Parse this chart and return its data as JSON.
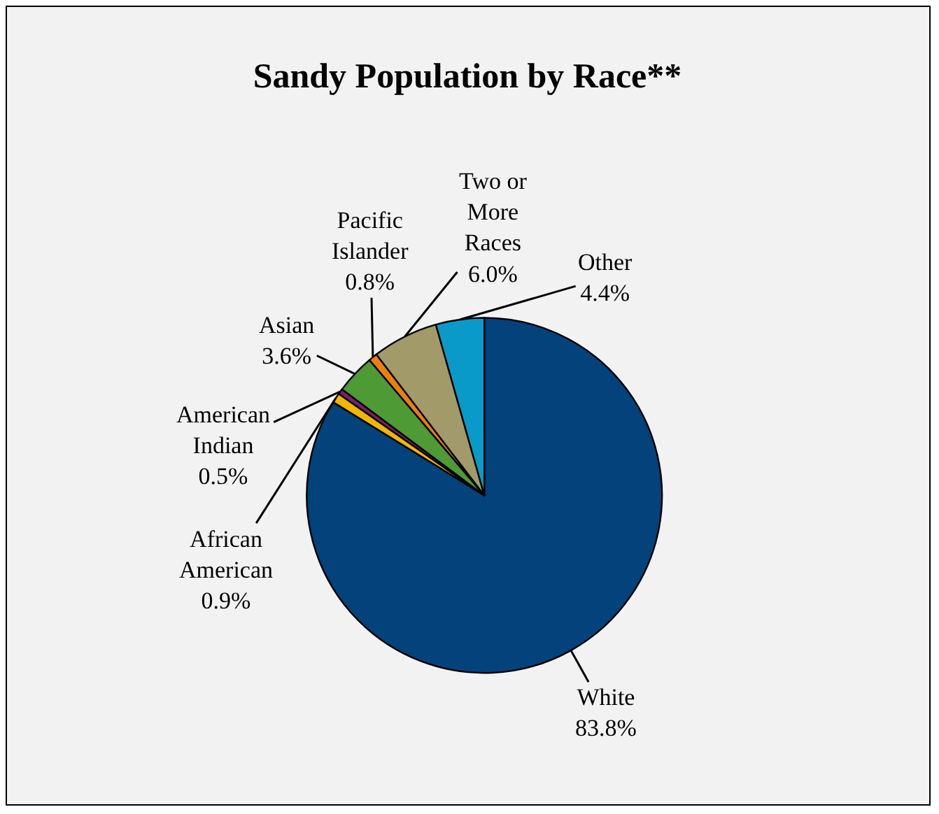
{
  "chart_data": {
    "type": "pie",
    "title": "Sandy Population by Race**",
    "categories": [
      "White",
      "African American",
      "American Indian",
      "Asian",
      "Pacific Islander",
      "Two or More Races",
      "Other"
    ],
    "values": [
      83.8,
      0.9,
      0.5,
      3.6,
      0.8,
      6.0,
      4.4
    ],
    "value_labels": [
      "83.8%",
      "0.9%",
      "0.5%",
      "3.6%",
      "0.8%",
      "6.0%",
      "4.4%"
    ],
    "colors": [
      "#03427a",
      "#f2b600",
      "#7a1f6e",
      "#4e9a35",
      "#f07f09",
      "#a39a6a",
      "#0a9ac9"
    ],
    "legend": false
  }
}
